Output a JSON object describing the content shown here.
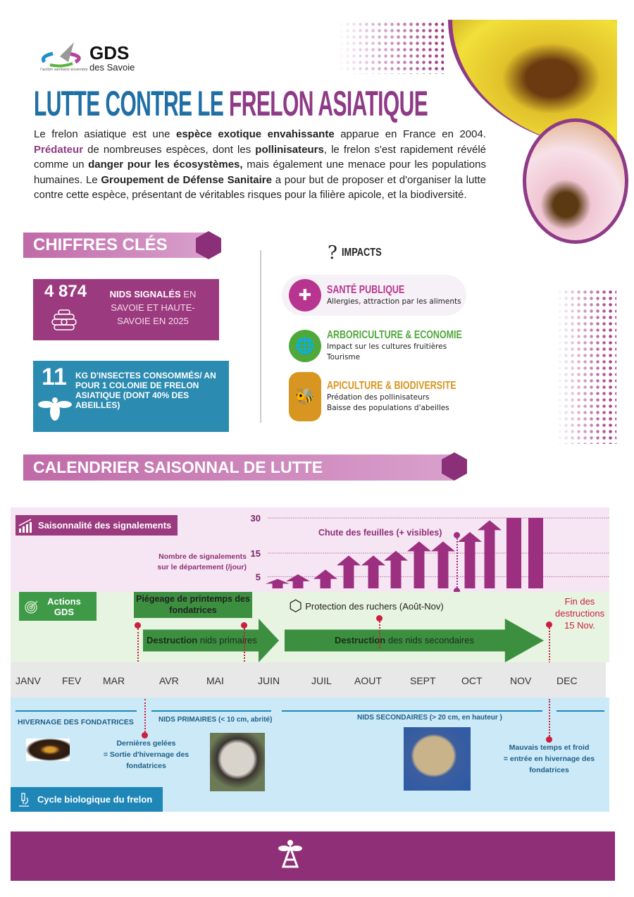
{
  "logo": {
    "name": "GDS",
    "sub": "des Savoie",
    "tagline": "l'action sanitaire ensemble"
  },
  "title": {
    "part1": "LUTTE CONTRE LE ",
    "part2": "FRELON ASIATIQUE"
  },
  "intro": {
    "s1": "Le frelon asiatique est une ",
    "b1": "espèce exotique envahissante",
    "s2": " apparue en France en 2004. ",
    "b2": "Prédateur",
    "s3": " de nombreuses espèces, dont les ",
    "b3": "pollinisateurs",
    "s4": ", le frelon s'est rapidement révélé comme un ",
    "b4": "danger pour les écosystèmes,",
    "s5": " mais également une menace pour les populations humaines. Le ",
    "b5": "Groupement de Défense Sanitaire",
    "s6": " a pour but de proposer et d'organiser la lutte contre cette espèce, présentant de véritables risques pour la filière apicole, et la biodiversité."
  },
  "chiffres": {
    "title": "CHIFFRES CLÉS",
    "stat1": {
      "value": "4 874",
      "label_bold": "NIDS SIGNALÉS",
      "label": " EN SAVOIE ET HAUTE-SAVOIE EN 2025",
      "color": "#9c3a7f"
    },
    "stat2": {
      "value": "11",
      "label_bold": "KG D'INSECTES CONSOMMÉS/ AN",
      "label": "  POUR 1 COLONIE DE FRELON ASIATIQUE (DONT 40% DES ABEILLES)",
      "color": "#2c8bb0"
    }
  },
  "impacts": {
    "title": "IMPACTS",
    "items": [
      {
        "title": "SANTÉ PUBLIQUE",
        "desc": "Allergies, attraction par les aliments",
        "color": "#b8358f",
        "icon": "cross-icon"
      },
      {
        "title": "ARBORICULTURE & ECONOMIE",
        "desc": "Impact sur les cultures fruitières\nTourisme",
        "color": "#4ea83a",
        "icon": "globe-dollar-icon"
      },
      {
        "title": "APICULTURE & BIODIVERSITE",
        "desc": "Prédation des pollinisateurs\nBaisse des populations d'abeilles",
        "color": "#d8951f",
        "icon": "bee-hive-icon"
      }
    ]
  },
  "calendar": {
    "title": "CALENDRIER SAISONNAL DE LUTTE",
    "season_label": "Saisonnalité des signalements",
    "y_label": "Nombre de signalements sur le département (/jour)",
    "leaf_fall": "Chute des feuilles (+ visibles)",
    "actions_label": "Actions GDS",
    "trapping": "Piégeage de printemps des fondatrices",
    "destroy_primary_b": "Destruction",
    "destroy_primary": " nids primaires",
    "protection": "Protection des ruchers  (Août-Nov)",
    "destroy_secondary_b": "Destruction",
    "destroy_secondary": " des nids secondaires",
    "end": "Fin des destructions 15 Nov.",
    "months": [
      "JANV",
      "FEV",
      "MAR",
      "AVR",
      "MAI",
      "JUIN",
      "JUIL",
      "AOUT",
      "SEPT",
      "OCT",
      "NOV",
      "DEC"
    ],
    "cycle": {
      "hivernage": "HIVERNAGE DES FONDATRICES",
      "primaires": "NIDS PRIMAIRES (< 10 cm, abrité)",
      "secondaires": "NIDS SECONDAIRES (> 20 cm, en hauteur )",
      "gelees": "Dernières gelées\n= Sortie d'hivernage des fondatrices",
      "froid": "Mauvais temps et froid\n= entrée en hivernage des fondatrices",
      "title": "Cycle biologique du frelon"
    }
  },
  "chart_data": {
    "type": "bar",
    "yticks": [
      5,
      15,
      30
    ],
    "ylim": [
      0,
      30
    ],
    "marks": [
      "arrow",
      "arrow",
      "arrow",
      "arrow",
      "arrow",
      "arrow",
      "arrow",
      "arrow",
      "arrow",
      "arrow",
      "bar",
      "bar"
    ],
    "values": [
      4,
      6,
      8,
      14,
      14,
      16,
      20,
      20,
      24,
      29,
      30,
      30
    ],
    "xrange": [
      "mi-JUIN",
      "NOV"
    ]
  }
}
